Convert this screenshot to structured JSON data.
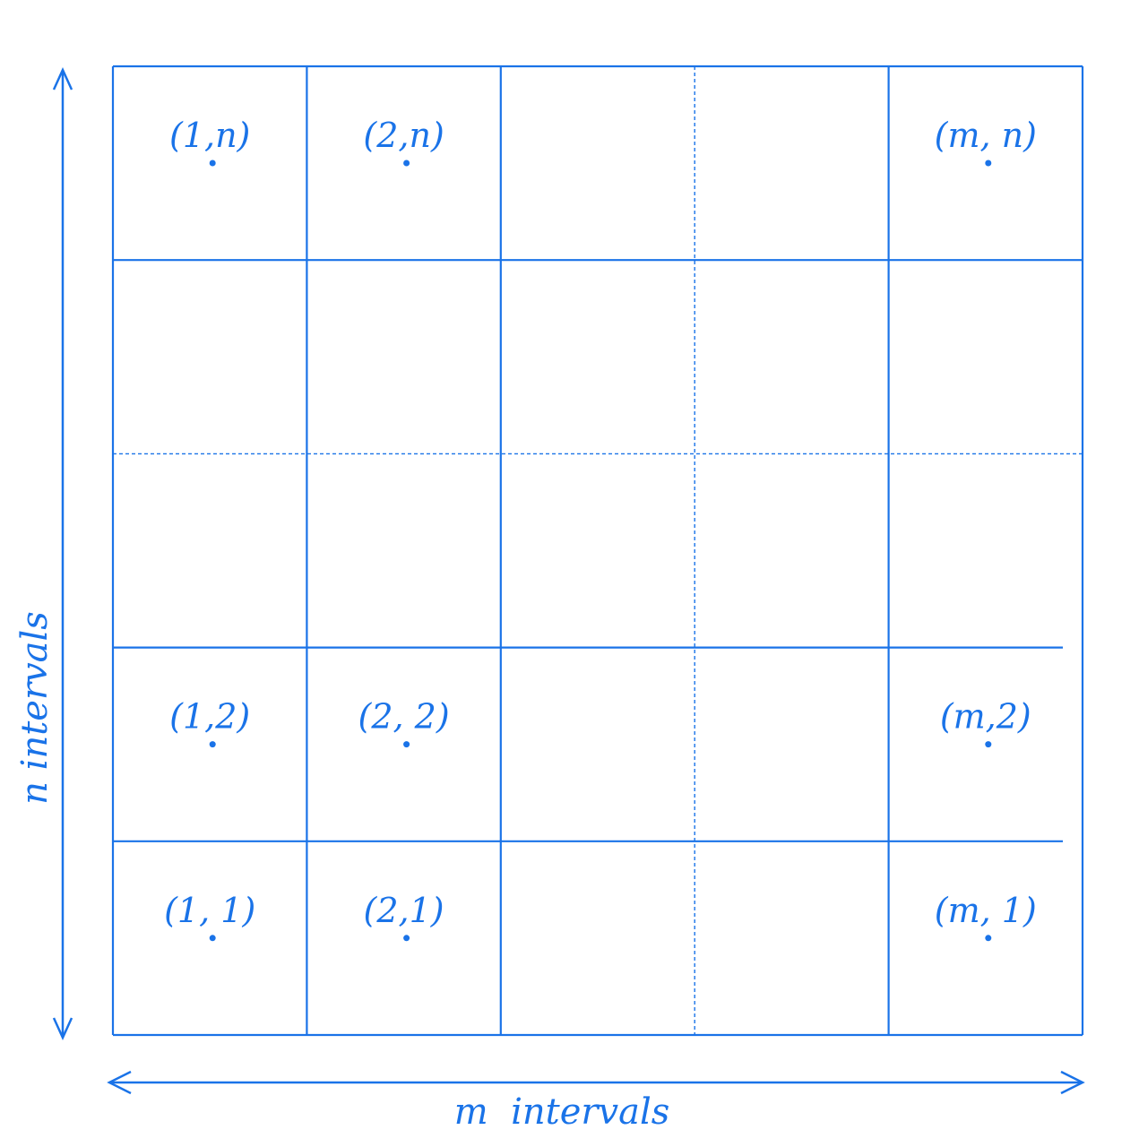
{
  "colors": {
    "ink": "#1a73e8",
    "background": "#ffffff"
  },
  "grid": {
    "columns": 5,
    "rows": 5
  },
  "axis_labels": {
    "horizontal": "m  intervals",
    "vertical": "n  intervals"
  },
  "cell_labels": [
    {
      "text": "(1,n)",
      "col": 0,
      "row": 0
    },
    {
      "text": "(2,n)",
      "col": 1,
      "row": 0
    },
    {
      "text": "(m, n)",
      "col": 4,
      "row": 0
    },
    {
      "text": "(1,2)",
      "col": 0,
      "row": 3
    },
    {
      "text": "(2, 2)",
      "col": 1,
      "row": 3
    },
    {
      "text": "(m,2)",
      "col": 4,
      "row": 3
    },
    {
      "text": "(1, 1)",
      "col": 0,
      "row": 4
    },
    {
      "text": "(2,1)",
      "col": 1,
      "row": 4
    },
    {
      "text": "(m, 1)",
      "col": 4,
      "row": 4
    }
  ]
}
